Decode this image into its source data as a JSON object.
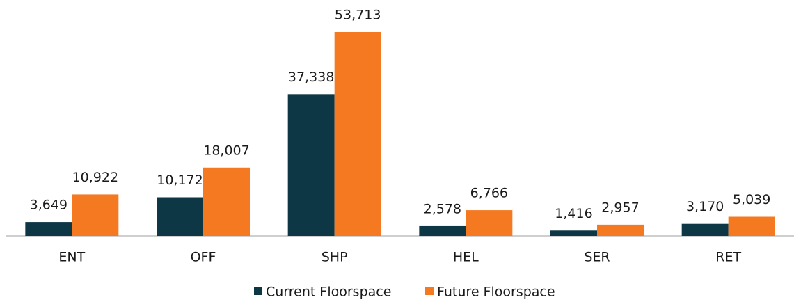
{
  "chart_data": {
    "type": "bar",
    "categories": [
      "ENT",
      "OFF",
      "SHP",
      "HEL",
      "SER",
      "RET"
    ],
    "series": [
      {
        "name": "Current Floorspace",
        "color": "#0e3745",
        "values": [
          3649,
          10172,
          37338,
          2578,
          1416,
          3170
        ],
        "value_labels": [
          "3,649",
          "10,172",
          "37,338",
          "2,578",
          "1,416",
          "3,170"
        ]
      },
      {
        "name": "Future Floorspace",
        "color": "#f47920",
        "values": [
          10922,
          18007,
          53713,
          6766,
          2957,
          5039
        ],
        "value_labels": [
          "10,922",
          "18,007",
          "53,713",
          "6,766",
          "2,957",
          "5,039"
        ]
      }
    ],
    "legend": "bottom"
  }
}
